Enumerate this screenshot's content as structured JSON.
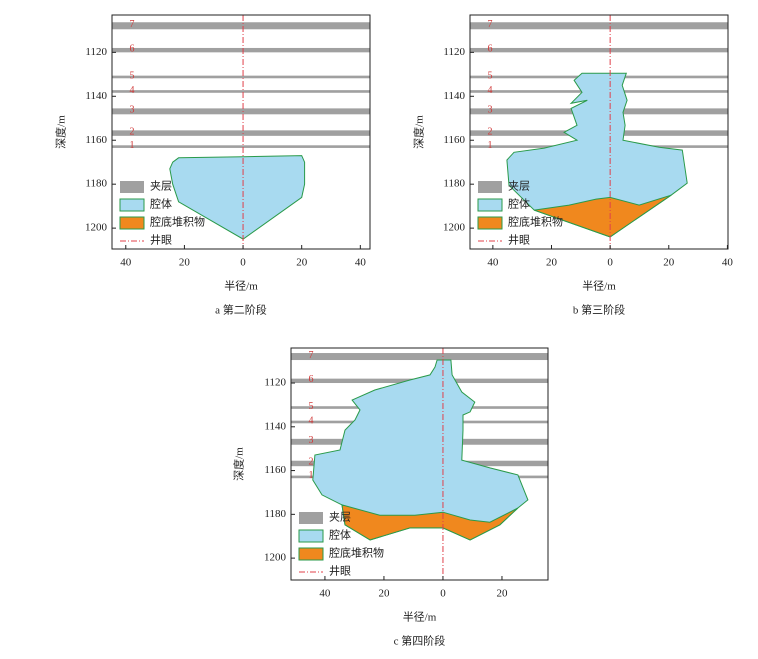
{
  "chart_data": [
    {
      "type": "cavern",
      "caption": "a 第二阶段",
      "xlabel": "半径/m",
      "ylabel": "深度/m",
      "xlim": [
        -44.7,
        43.3
      ],
      "ylim": [
        1103,
        1209.5
      ],
      "xticks": [
        {
          "value": -40,
          "label": "40"
        },
        {
          "value": -20,
          "label": "20"
        },
        0,
        20,
        40
      ],
      "yticks": [
        1120,
        1140,
        1160,
        1180,
        1200
      ],
      "layer_name": "夹层",
      "layer_color": "#a0a0a0",
      "layers": [
        {
          "label": "7",
          "top": 1106.3,
          "bottom": 1109.5
        },
        {
          "label": "6",
          "top": 1118,
          "bottom": 1120
        },
        {
          "label": "5",
          "top": 1130.6,
          "bottom": 1131.8
        },
        {
          "label": "4",
          "top": 1137.2,
          "bottom": 1138.4
        },
        {
          "label": "3",
          "top": 1145.5,
          "bottom": 1148.2
        },
        {
          "label": "2",
          "top": 1155.5,
          "bottom": 1158
        },
        {
          "label": "1",
          "top": 1162.3,
          "bottom": 1163.5
        }
      ],
      "series": [
        {
          "name": "腔体",
          "color": "#a8daf0",
          "x": [
            -24,
            -22,
            0,
            20,
            21,
            21,
            20,
            0,
            -22,
            -24,
            -25
          ],
          "y": [
            1170,
            1168,
            1167.5,
            1167,
            1170,
            1180,
            1186,
            1205,
            1188,
            1180,
            1173
          ]
        },
        {
          "name": "腔底堆积物",
          "color": "#f0881e",
          "x": [],
          "y": []
        }
      ],
      "wellbore": {
        "name": "井眼",
        "x": 0,
        "color": "#e0404a"
      }
    },
    {
      "type": "cavern",
      "caption": "b 第三阶段",
      "xlabel": "半径/m",
      "ylabel": "深度/m",
      "xlim": [
        -47.8,
        40.2
      ],
      "ylim": [
        1103,
        1209.5
      ],
      "xticks": [
        {
          "value": -40,
          "label": "40"
        },
        {
          "value": -20,
          "label": "20"
        },
        0,
        20,
        40
      ],
      "yticks": [
        1120,
        1140,
        1160,
        1180,
        1200
      ],
      "layer_name": "夹层",
      "layer_color": "#a0a0a0",
      "layers": [
        {
          "label": "7",
          "top": 1106.3,
          "bottom": 1109.5
        },
        {
          "label": "6",
          "top": 1118,
          "bottom": 1120
        },
        {
          "label": "5",
          "top": 1130.6,
          "bottom": 1131.8
        },
        {
          "label": "4",
          "top": 1137.2,
          "bottom": 1138.4
        },
        {
          "label": "3",
          "top": 1145.5,
          "bottom": 1148.2
        },
        {
          "label": "2",
          "top": 1155.5,
          "bottom": 1158
        },
        {
          "label": "1",
          "top": 1162.3,
          "bottom": 1163.5
        }
      ],
      "series": [
        {
          "name": "腔体",
          "color": "#a8daf0",
          "x": [
            -9.6,
            5.5,
            4.1,
            5.8,
            4.4,
            5.1,
            4.4,
            16.7,
            24.6,
            26.3,
            20.8,
            0,
            -25.9,
            -34.5,
            -35.2,
            -32.8,
            -22.5,
            -11.3,
            -15.7,
            -11.3,
            -13.3,
            -7.8,
            -13.3,
            -9.6,
            -12.3
          ],
          "y": [
            1129.5,
            1129.5,
            1135,
            1141.8,
            1147.3,
            1153.2,
            1160,
            1163.2,
            1164.5,
            1179.5,
            1185,
            1204,
            1191.8,
            1180.5,
            1169,
            1165.5,
            1163.6,
            1160,
            1156.4,
            1153.2,
            1145.5,
            1141.8,
            1143.2,
            1138.2,
            1132.7
          ]
        },
        {
          "name": "腔底堆积物",
          "color": "#f0881e",
          "x": [
            -25.9,
            -14,
            -4.8,
            0,
            9.9,
            20.8,
            0
          ],
          "y": [
            1191.8,
            1189.5,
            1186.8,
            1186,
            1189.5,
            1185,
            1204
          ]
        }
      ],
      "wellbore": {
        "name": "井眼",
        "x": 0,
        "color": "#e0404a"
      }
    },
    {
      "type": "cavern",
      "caption": "c 第四阶段",
      "xlabel": "半径/m",
      "ylabel": "深度/m",
      "xlim": [
        -51.5,
        35.6
      ],
      "ylim": [
        1104,
        1210
      ],
      "xticks": [
        {
          "value": -40,
          "label": "40"
        },
        {
          "value": -20,
          "label": "20"
        },
        0,
        20
      ],
      "yticks": [
        1120,
        1140,
        1160,
        1180,
        1200
      ],
      "layer_name": "夹层",
      "layer_color": "#a0a0a0",
      "layers": [
        {
          "label": "7",
          "top": 1106.3,
          "bottom": 1109.5
        },
        {
          "label": "6",
          "top": 1118,
          "bottom": 1120
        },
        {
          "label": "5",
          "top": 1130.6,
          "bottom": 1131.8
        },
        {
          "label": "4",
          "top": 1137.2,
          "bottom": 1138.4
        },
        {
          "label": "3",
          "top": 1145.5,
          "bottom": 1148.2
        },
        {
          "label": "2",
          "top": 1155.5,
          "bottom": 1158
        },
        {
          "label": "1",
          "top": 1162.3,
          "bottom": 1163.5
        }
      ],
      "series": [
        {
          "name": "腔体",
          "color": "#a8daf0",
          "x": [
            -2,
            2.7,
            3.1,
            6.4,
            10.8,
            9.2,
            6.8,
            6.8,
            6.4,
            15.9,
            25.4,
            28.8,
            25.4,
            19.3,
            9.2,
            0,
            -11.2,
            -24.7,
            -33.2,
            -34.2,
            -41,
            -44.1,
            -43.4,
            -34.9,
            -33.2,
            -29.8,
            -28.1,
            -30.8,
            -23.1,
            -11.2,
            -4.4,
            -2.7
          ],
          "y": [
            1109.5,
            1109.5,
            1116.3,
            1124.1,
            1128.7,
            1133.2,
            1134.6,
            1141.5,
            1155.2,
            1158.8,
            1162,
            1173.4,
            1177.1,
            1184.8,
            1191.7,
            1186.2,
            1186.2,
            1191.7,
            1184.8,
            1175.7,
            1171.1,
            1164.3,
            1152.9,
            1150.6,
            1141.5,
            1136.9,
            1132.3,
            1127.8,
            1123.2,
            1118.6,
            1116.3,
            1112.7
          ]
        },
        {
          "name": "腔底堆积物",
          "color": "#f0881e",
          "x": [
            -34.2,
            -21.4,
            -9.5,
            0,
            9.2,
            15.9,
            25.4,
            19.3,
            9.2,
            0,
            -11.2,
            -24.7,
            -33.2
          ],
          "y": [
            1175.7,
            1180.4,
            1180.4,
            1179,
            1182.6,
            1183.6,
            1177.1,
            1184.8,
            1191.7,
            1186.2,
            1186.2,
            1191.7,
            1184.8
          ]
        }
      ],
      "wellbore": {
        "name": "井眼",
        "x": 0,
        "color": "#e0404a"
      }
    }
  ]
}
